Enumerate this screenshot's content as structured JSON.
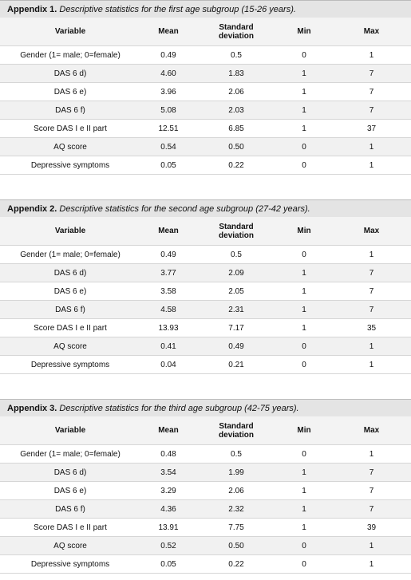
{
  "appendices": [
    {
      "label": "Appendix 1.",
      "caption": "Descriptive statistics for the first age subgroup (15-26 years).",
      "header": [
        "Variable",
        "Mean",
        "Standard deviation",
        "Min",
        "Max"
      ],
      "rows": [
        [
          "Gender (1= male; 0=female)",
          "0.49",
          "0.5",
          "0",
          "1"
        ],
        [
          "DAS 6 d)",
          "4.60",
          "1.83",
          "1",
          "7"
        ],
        [
          "DAS 6 e)",
          "3.96",
          "2.06",
          "1",
          "7"
        ],
        [
          "DAS 6 f)",
          "5.08",
          "2.03",
          "1",
          "7"
        ],
        [
          "Score DAS I e II part",
          "12.51",
          "6.85",
          "1",
          "37"
        ],
        [
          "AQ score",
          "0.54",
          "0.50",
          "0",
          "1"
        ],
        [
          "Depressive symptoms",
          "0.05",
          "0.22",
          "0",
          "1"
        ]
      ]
    },
    {
      "label": "Appendix 2.",
      "caption": "Descriptive statistics for the second age subgroup (27-42 years).",
      "header": [
        "Variable",
        "Mean",
        "Standard deviation",
        "Min",
        "Max"
      ],
      "rows": [
        [
          "Gender (1= male; 0=female)",
          "0.49",
          "0.5",
          "0",
          "1"
        ],
        [
          "DAS 6 d)",
          "3.77",
          "2.09",
          "1",
          "7"
        ],
        [
          "DAS 6 e)",
          "3.58",
          "2.05",
          "1",
          "7"
        ],
        [
          "DAS 6 f)",
          "4.58",
          "2.31",
          "1",
          "7"
        ],
        [
          "Score DAS I e II part",
          "13.93",
          "7.17",
          "1",
          "35"
        ],
        [
          "AQ score",
          "0.41",
          "0.49",
          "0",
          "1"
        ],
        [
          "Depressive symptoms",
          "0.04",
          "0.21",
          "0",
          "1"
        ]
      ]
    },
    {
      "label": "Appendix 3.",
      "caption": "Descriptive statistics for the third age subgroup (42-75 years).",
      "header": [
        "Variable",
        "Mean",
        "Standard deviation",
        "Min",
        "Max"
      ],
      "rows": [
        [
          "Gender (1= male; 0=female)",
          "0.48",
          "0.5",
          "0",
          "1"
        ],
        [
          "DAS 6 d)",
          "3.54",
          "1.99",
          "1",
          "7"
        ],
        [
          "DAS 6 e)",
          "3.29",
          "2.06",
          "1",
          "7"
        ],
        [
          "DAS 6 f)",
          "4.36",
          "2.32",
          "1",
          "7"
        ],
        [
          "Score DAS I e II part",
          "13.91",
          "7.75",
          "1",
          "39"
        ],
        [
          "AQ score",
          "0.52",
          "0.50",
          "0",
          "1"
        ],
        [
          "Depressive symptoms",
          "0.05",
          "0.22",
          "0",
          "1"
        ]
      ]
    }
  ]
}
